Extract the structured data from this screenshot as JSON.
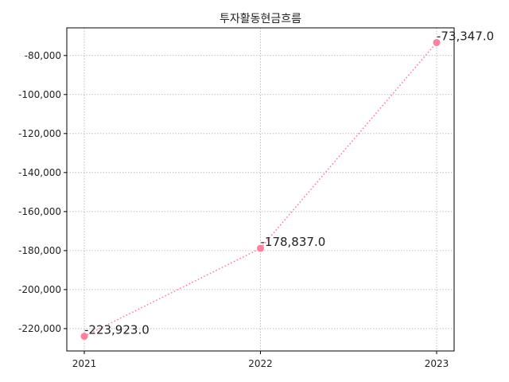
{
  "chart_data": {
    "type": "line",
    "title": "투자활동현금흐름",
    "xlabel": "",
    "ylabel": "",
    "categories": [
      "2021",
      "2022",
      "2023"
    ],
    "series": [
      {
        "values": [
          -223923.0,
          -178837.0,
          -73347.0
        ],
        "labels": [
          "-223,923.0",
          "-178,837.0",
          "-73,347.0"
        ],
        "color": "#ff7f9f",
        "line_style": "dotted",
        "marker": "circle"
      }
    ],
    "yticks": [
      -220000,
      -200000,
      -180000,
      -160000,
      -140000,
      -120000,
      -100000,
      -80000
    ],
    "ytick_labels": [
      "-220,000",
      "-200,000",
      "-180,000",
      "-160,000",
      "-140,000",
      "-120,000",
      "-100,000",
      "-80,000"
    ],
    "ylim": [
      -231452,
      -65818
    ],
    "grid": true
  }
}
